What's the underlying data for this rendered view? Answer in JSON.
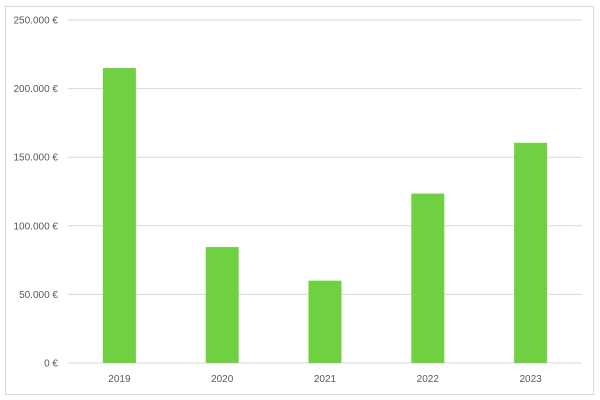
{
  "chart_data": {
    "type": "bar",
    "categories": [
      "2019",
      "2020",
      "2021",
      "2022",
      "2023"
    ],
    "values": [
      215000,
      84500,
      60000,
      123500,
      160500
    ],
    "ylim": [
      0,
      250000
    ],
    "yticks": [
      0,
      50000,
      100000,
      150000,
      200000,
      250000
    ],
    "ytick_labels": [
      "0 €",
      "50.000 €",
      "100.000 €",
      "150.000 €",
      "200.000 €",
      "250.000 €"
    ],
    "grid": true,
    "legend": "none",
    "bar_color": "#6fd142",
    "gridline_color": "#d9d9d9",
    "title": "",
    "xlabel": "",
    "ylabel": ""
  }
}
